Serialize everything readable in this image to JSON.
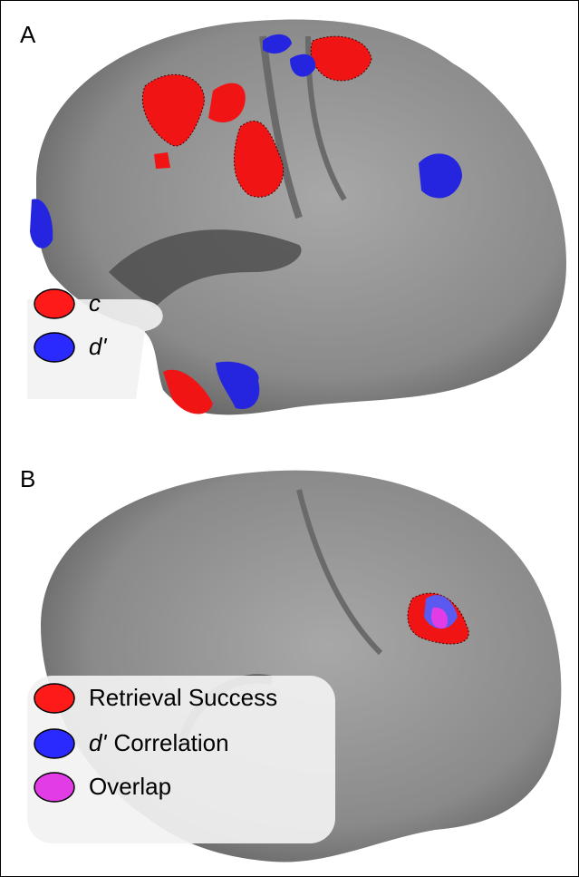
{
  "panels": [
    {
      "label": "A",
      "legend": [
        {
          "color": "#ff1a1a",
          "symbol": "c"
        },
        {
          "color": "#2a2aff",
          "symbol": "d'"
        }
      ]
    },
    {
      "label": "B",
      "legend": [
        {
          "color": "#ff1a1a",
          "text": "Retrieval Success"
        },
        {
          "color": "#2a2aff",
          "symbol": "d'",
          "text": "Correlation"
        },
        {
          "color": "#e23ce6",
          "text": "Overlap"
        }
      ]
    }
  ]
}
